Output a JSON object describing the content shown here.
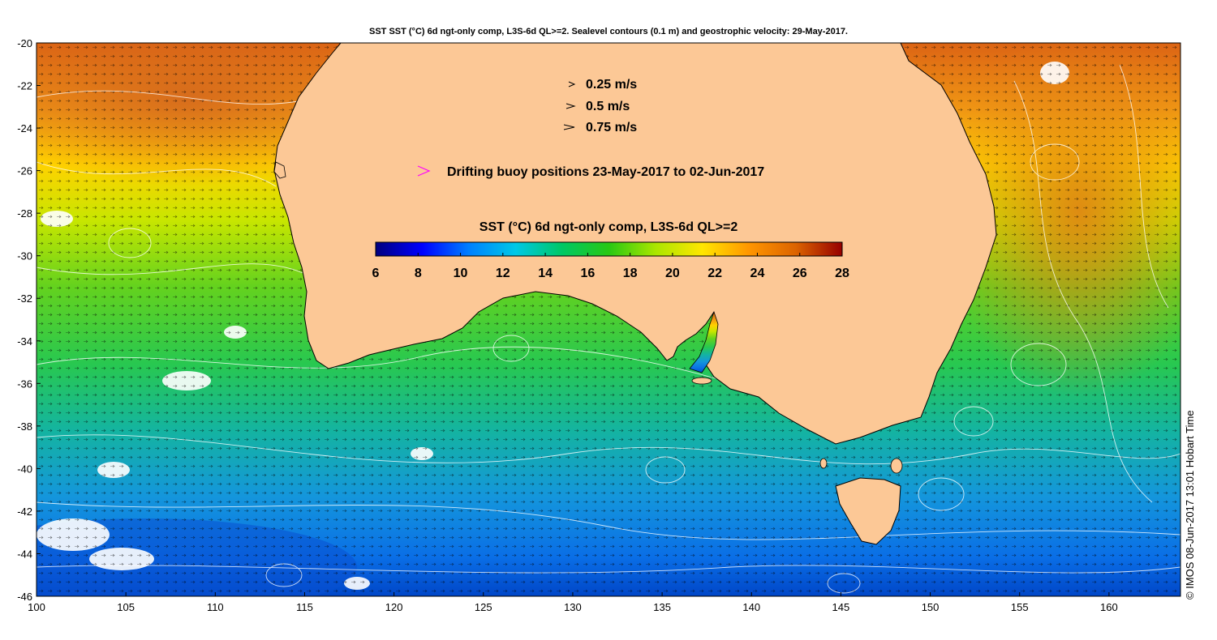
{
  "title": "SST SST (°C) 6d ngt-only comp, L3S-6d QL>=2. Sealevel contours (0.1 m) and geostrophic velocity: 29-May-2017.",
  "credit": "© IMOS 08-Jun-2017 13:01 Hobart Time",
  "velocity_legend": [
    {
      "label": "0.25 m/s",
      "speed": 0.25
    },
    {
      "label": "0.5 m/s",
      "speed": 0.5
    },
    {
      "label": "0.75 m/s",
      "speed": 0.75
    }
  ],
  "buoy_legend": {
    "label": "Drifting buoy positions 23-May-2017 to 02-Jun-2017",
    "color": "#ff00ff"
  },
  "colorbar": {
    "title": "SST (°C) 6d ngt-only comp, L3S-6d QL>=2",
    "min": 6,
    "max": 28,
    "ticks": [
      "6",
      "8",
      "10",
      "12",
      "14",
      "16",
      "18",
      "20",
      "22",
      "24",
      "26",
      "28"
    ],
    "stops": [
      "#00007f",
      "#0000ff",
      "#0080ff",
      "#00c8e6",
      "#00c864",
      "#28c814",
      "#aae600",
      "#ffe600",
      "#ff9600",
      "#dc6400",
      "#960000"
    ]
  },
  "map": {
    "lon_range": [
      100,
      164
    ],
    "lat_range": [
      -46,
      -20
    ],
    "x_ticks": [
      "100",
      "105",
      "110",
      "115",
      "120",
      "125",
      "130",
      "135",
      "140",
      "145",
      "150",
      "155",
      "160"
    ],
    "y_ticks": [
      "-20",
      "-22",
      "-24",
      "-26",
      "-28",
      "-30",
      "-32",
      "-34",
      "-36",
      "-38",
      "-40",
      "-42",
      "-44",
      "-46"
    ],
    "land_color": "#fcc896"
  }
}
